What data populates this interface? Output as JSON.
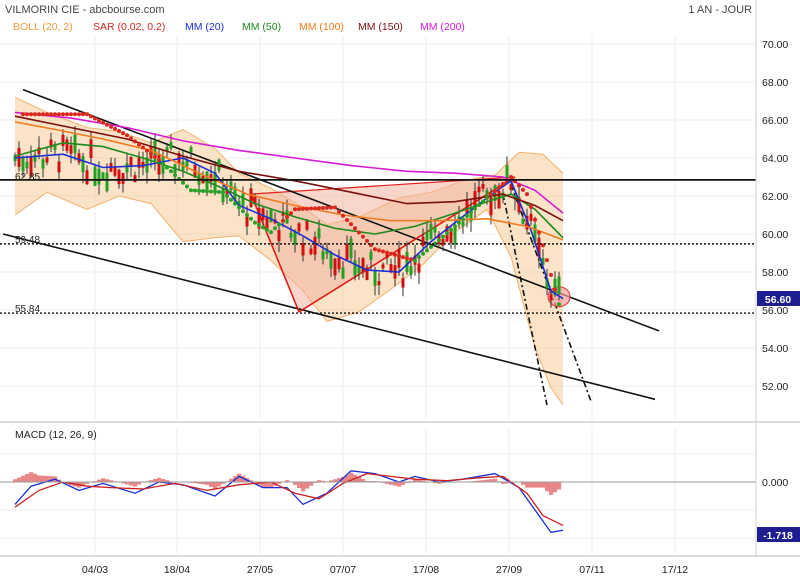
{
  "header": {
    "title": "VILMORIN CIE - abcbourse.com",
    "period": "1 AN - JOUR"
  },
  "legend": [
    {
      "label": "BOLL (20, 2)",
      "color": "#f09a3e"
    },
    {
      "label": "SAR (0.02, 0.2)",
      "color": "#cc2a1f"
    },
    {
      "label": "MM (20)",
      "color": "#1a2fd6"
    },
    {
      "label": "MM (50)",
      "color": "#1e8a1e"
    },
    {
      "label": "MM (100)",
      "color": "#f07a1e"
    },
    {
      "label": "MM (150)",
      "color": "#7a1010"
    },
    {
      "label": "MM (200)",
      "color": "#d61ad6"
    }
  ],
  "price_axis": {
    "ticks": [
      "70.00",
      "68.00",
      "66.00",
      "64.00",
      "62.00",
      "60.00",
      "58.00",
      "56.00",
      "54.00",
      "52.00"
    ],
    "tick_values": [
      70,
      68,
      66,
      64,
      62,
      60,
      58,
      56,
      54,
      52
    ],
    "last_value_label": "56.60",
    "last_value": 56.6
  },
  "levels": [
    {
      "label": "62.85",
      "value": 62.85,
      "style": "solid"
    },
    {
      "label": "59.48",
      "value": 59.48,
      "style": "dotted"
    },
    {
      "label": "55.84",
      "value": 55.84,
      "style": "dotted"
    }
  ],
  "x_axis": {
    "labels": [
      "04/03",
      "18/04",
      "27/05",
      "07/07",
      "17/08",
      "27/09",
      "07/11",
      "17/12"
    ]
  },
  "macd": {
    "title": "MACD (12, 26, 9)",
    "zero_label": "0.000",
    "zero_value": 0,
    "last_label": "-1.718",
    "last_value": -1.718
  },
  "chart_data": {
    "type": "candlestick",
    "title": "VILMORIN CIE",
    "ylim": [
      50.5,
      71
    ],
    "series": [
      {
        "name": "MM (20)",
        "points": [
          [
            0,
            64.0
          ],
          [
            12,
            64.2
          ],
          [
            22,
            63.5
          ],
          [
            32,
            63.6
          ],
          [
            42,
            64.0
          ],
          [
            50,
            63.2
          ],
          [
            56,
            61.5
          ],
          [
            64,
            60.8
          ],
          [
            72,
            59.9
          ],
          [
            80,
            58.9
          ],
          [
            88,
            58.1
          ],
          [
            96,
            58.0
          ],
          [
            104,
            59.6
          ],
          [
            110,
            60.6
          ],
          [
            118,
            61.9
          ],
          [
            124,
            62.8
          ],
          [
            129,
            60.2
          ],
          [
            134,
            57.0
          ],
          [
            137,
            56.6
          ]
        ]
      },
      {
        "name": "MM (50)",
        "points": [
          [
            0,
            64.1
          ],
          [
            12,
            64.8
          ],
          [
            22,
            64.6
          ],
          [
            32,
            64.0
          ],
          [
            42,
            63.3
          ],
          [
            52,
            62.4
          ],
          [
            60,
            61.6
          ],
          [
            70,
            60.9
          ],
          [
            80,
            60.3
          ],
          [
            90,
            60.0
          ],
          [
            100,
            60.4
          ],
          [
            110,
            61.1
          ],
          [
            118,
            61.7
          ],
          [
            124,
            62.1
          ],
          [
            130,
            61.3
          ],
          [
            137,
            59.8
          ]
        ]
      },
      {
        "name": "MM (100)",
        "points": [
          [
            0,
            65.9
          ],
          [
            10,
            65.5
          ],
          [
            22,
            65.0
          ],
          [
            34,
            64.4
          ],
          [
            46,
            63.2
          ],
          [
            58,
            62.1
          ],
          [
            70,
            61.5
          ],
          [
            82,
            61.0
          ],
          [
            94,
            60.7
          ],
          [
            106,
            60.7
          ],
          [
            118,
            60.8
          ],
          [
            128,
            60.4
          ],
          [
            137,
            59.7
          ]
        ]
      },
      {
        "name": "MM (150)",
        "points": [
          [
            0,
            66.2
          ],
          [
            14,
            65.6
          ],
          [
            28,
            65.0
          ],
          [
            42,
            64.1
          ],
          [
            56,
            63.3
          ],
          [
            70,
            62.8
          ],
          [
            84,
            62.2
          ],
          [
            98,
            61.6
          ],
          [
            110,
            61.7
          ],
          [
            122,
            62.1
          ],
          [
            130,
            61.5
          ],
          [
            137,
            60.7
          ]
        ]
      },
      {
        "name": "MM (200)",
        "points": [
          [
            0,
            66.4
          ],
          [
            14,
            66.1
          ],
          [
            28,
            65.6
          ],
          [
            42,
            64.9
          ],
          [
            56,
            64.4
          ],
          [
            70,
            64.0
          ],
          [
            84,
            63.6
          ],
          [
            98,
            63.3
          ],
          [
            110,
            63.2
          ],
          [
            122,
            63.0
          ],
          [
            130,
            62.3
          ],
          [
            137,
            61.1
          ]
        ]
      },
      {
        "name": "BOLL upper",
        "points": [
          [
            0,
            67.2
          ],
          [
            8,
            66.4
          ],
          [
            18,
            65.6
          ],
          [
            26,
            65.4
          ],
          [
            34,
            64.8
          ],
          [
            42,
            65.5
          ],
          [
            50,
            64.5
          ],
          [
            56,
            63.2
          ],
          [
            64,
            62.4
          ],
          [
            72,
            61.4
          ],
          [
            78,
            60.5
          ],
          [
            86,
            60.9
          ],
          [
            96,
            61.9
          ],
          [
            104,
            62.2
          ],
          [
            112,
            62.8
          ],
          [
            120,
            63.1
          ],
          [
            126,
            64.3
          ],
          [
            132,
            64.2
          ],
          [
            137,
            63.2
          ]
        ]
      },
      {
        "name": "BOLL lower",
        "points": [
          [
            0,
            61.0
          ],
          [
            8,
            62.2
          ],
          [
            18,
            61.3
          ],
          [
            26,
            62.0
          ],
          [
            34,
            61.6
          ],
          [
            42,
            59.6
          ],
          [
            50,
            59.8
          ],
          [
            56,
            59.9
          ],
          [
            64,
            58.6
          ],
          [
            72,
            57.0
          ],
          [
            78,
            55.4
          ],
          [
            86,
            55.9
          ],
          [
            94,
            57.1
          ],
          [
            102,
            58.4
          ],
          [
            110,
            60.1
          ],
          [
            118,
            61.3
          ],
          [
            124,
            58.8
          ],
          [
            130,
            54.0
          ],
          [
            134,
            51.9
          ],
          [
            137,
            51.0
          ]
        ]
      }
    ],
    "sar": [
      [
        18,
        66.3
      ],
      [
        28,
        65.2
      ],
      [
        36,
        63.9
      ],
      [
        44,
        62.3
      ],
      [
        52,
        62.2
      ],
      [
        60,
        60.6
      ],
      [
        64,
        60.1
      ],
      [
        70,
        61.3
      ],
      [
        80,
        61.4
      ],
      [
        90,
        59.2
      ],
      [
        100,
        58.6
      ],
      [
        110,
        60.4
      ],
      [
        118,
        61.9
      ],
      [
        124,
        63.0
      ],
      [
        128,
        62.1
      ],
      [
        132,
        59.4
      ],
      [
        136,
        56.3
      ]
    ],
    "trendlines": [
      {
        "from": [
          2,
          67.6
        ],
        "to": [
          161,
          54.9
        ]
      },
      {
        "from": [
          -3,
          60.0
        ],
        "to": [
          160,
          51.3
        ]
      },
      {
        "from": [
          71,
          55.9
        ],
        "to": [
          125,
          63.0
        ]
      },
      {
        "from": [
          71,
          55.9
        ],
        "to": [
          59,
          62.1
        ]
      },
      {
        "from": [
          122,
          62.1
        ],
        "to": [
          133,
          51.0
        ]
      },
      {
        "from": [
          124,
          62.6
        ],
        "to": [
          144,
          51.2
        ]
      }
    ],
    "highlight": {
      "center": [
        136,
        56.7
      ],
      "radius": 1.1
    },
    "candles_count": 137,
    "macd_series": [
      {
        "name": "MACD",
        "points": [
          [
            0,
            -0.8
          ],
          [
            4,
            -0.15
          ],
          [
            10,
            0.1
          ],
          [
            16,
            -0.3
          ],
          [
            22,
            -0.05
          ],
          [
            30,
            -0.4
          ],
          [
            36,
            0.0
          ],
          [
            42,
            -0.1
          ],
          [
            50,
            -0.5
          ],
          [
            56,
            0.2
          ],
          [
            62,
            -0.2
          ],
          [
            68,
            -0.2
          ],
          [
            72,
            -0.8
          ],
          [
            78,
            -0.4
          ],
          [
            84,
            0.4
          ],
          [
            90,
            0.3
          ],
          [
            96,
            0.0
          ],
          [
            100,
            0.2
          ],
          [
            106,
            0.0
          ],
          [
            112,
            0.1
          ],
          [
            120,
            0.3
          ],
          [
            126,
            -0.2
          ],
          [
            130,
            -1.0
          ],
          [
            134,
            -1.8
          ],
          [
            137,
            -1.72
          ]
        ]
      },
      {
        "name": "Signal",
        "points": [
          [
            0,
            -0.9
          ],
          [
            6,
            -0.3
          ],
          [
            12,
            0.0
          ],
          [
            18,
            -0.15
          ],
          [
            24,
            -0.2
          ],
          [
            32,
            -0.25
          ],
          [
            40,
            -0.05
          ],
          [
            48,
            -0.3
          ],
          [
            56,
            -0.1
          ],
          [
            64,
            0.0
          ],
          [
            70,
            -0.4
          ],
          [
            76,
            -0.6
          ],
          [
            82,
            -0.05
          ],
          [
            88,
            0.3
          ],
          [
            94,
            0.2
          ],
          [
            100,
            0.1
          ],
          [
            108,
            0.05
          ],
          [
            116,
            0.15
          ],
          [
            122,
            0.2
          ],
          [
            128,
            -0.4
          ],
          [
            132,
            -1.2
          ],
          [
            137,
            -1.55
          ]
        ]
      }
    ],
    "macd_ylim": [
      -2.2,
      0.75
    ]
  }
}
